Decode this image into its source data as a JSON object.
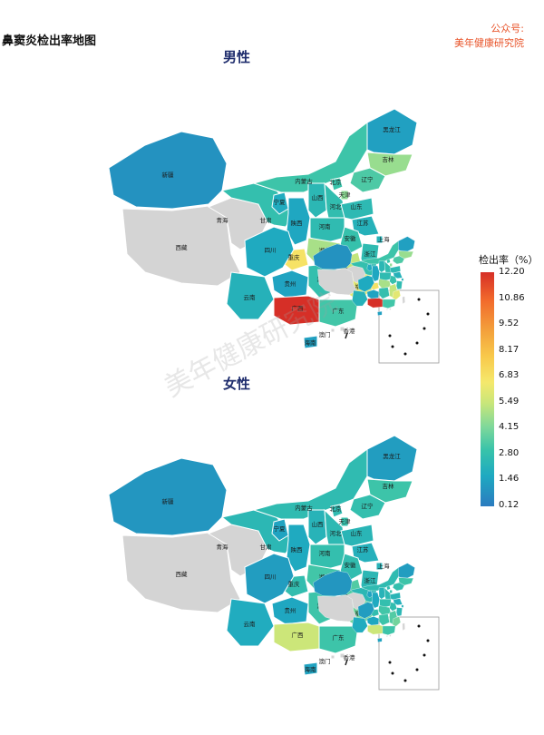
{
  "title": "鼻窦炎检出率地图",
  "brand": {
    "line1": "公众号:",
    "line2": "美年健康研究院"
  },
  "watermark": "美年健康研究院",
  "legend": {
    "title": "检出率（%）",
    "ticks": [
      "12.20",
      "10.86",
      "9.52",
      "8.17",
      "6.83",
      "5.49",
      "4.15",
      "2.80",
      "1.46",
      "0.12"
    ],
    "min": 0.12,
    "max": 12.2
  },
  "colors": {
    "nodata": "#d4d4d4",
    "border": "#ffffff",
    "low": "#2b7bbf",
    "high": "#d62f27"
  },
  "maps": [
    {
      "subtitle": "男性",
      "provinces": [
        {
          "name": "新疆",
          "value": 0.8
        },
        {
          "name": "西藏",
          "value": null
        },
        {
          "name": "青海",
          "value": null
        },
        {
          "name": "甘肃",
          "value": 2.6
        },
        {
          "name": "内蒙古",
          "value": 2.9
        },
        {
          "name": "黑龙江",
          "value": 1.2
        },
        {
          "name": "吉林",
          "value": 4.6
        },
        {
          "name": "辽宁",
          "value": 3.2
        },
        {
          "name": "宁夏",
          "value": 1.6
        },
        {
          "name": "陕西",
          "value": 1.4
        },
        {
          "name": "山西",
          "value": 2.2
        },
        {
          "name": "北京",
          "value": 2.8
        },
        {
          "name": "天津",
          "value": 4.4
        },
        {
          "name": "河北",
          "value": 2.5
        },
        {
          "name": "山东",
          "value": 2.3
        },
        {
          "name": "河南",
          "value": 2.4
        },
        {
          "name": "江苏",
          "value": 1.9
        },
        {
          "name": "安徽",
          "value": 2.7
        },
        {
          "name": "上海",
          "value": 2.0
        },
        {
          "name": "湖北",
          "value": 4.9
        },
        {
          "name": "重庆",
          "value": 7.1
        },
        {
          "name": "四川",
          "value": 1.5
        },
        {
          "name": "湖南",
          "value": 2.6
        },
        {
          "name": "江西",
          "value": 5.4
        },
        {
          "name": "浙江",
          "value": 2.4
        },
        {
          "name": "福建",
          "value": 6.3
        },
        {
          "name": "贵州",
          "value": 1.3
        },
        {
          "name": "云南",
          "value": 1.9
        },
        {
          "name": "广西",
          "value": 12.2
        },
        {
          "name": "广东",
          "value": 3.0
        },
        {
          "name": "海南",
          "value": 1.2
        },
        {
          "name": "台湾",
          "value": null
        },
        {
          "name": "香港",
          "value": null
        },
        {
          "name": "澳门",
          "value": null
        }
      ]
    },
    {
      "subtitle": "女性",
      "provinces": [
        {
          "name": "新疆",
          "value": 0.9
        },
        {
          "name": "西藏",
          "value": null
        },
        {
          "name": "青海",
          "value": null
        },
        {
          "name": "甘肃",
          "value": 2.2
        },
        {
          "name": "内蒙古",
          "value": 2.4
        },
        {
          "name": "黑龙江",
          "value": 1.1
        },
        {
          "name": "吉林",
          "value": 2.9
        },
        {
          "name": "辽宁",
          "value": 2.6
        },
        {
          "name": "宁夏",
          "value": 1.3
        },
        {
          "name": "陕西",
          "value": 1.5
        },
        {
          "name": "山西",
          "value": 2.0
        },
        {
          "name": "北京",
          "value": 2.4
        },
        {
          "name": "天津",
          "value": 2.7
        },
        {
          "name": "河北",
          "value": 2.3
        },
        {
          "name": "山东",
          "value": 2.1
        },
        {
          "name": "河南",
          "value": 2.6
        },
        {
          "name": "江苏",
          "value": 1.8
        },
        {
          "name": "安徽",
          "value": 2.5
        },
        {
          "name": "上海",
          "value": 2.0
        },
        {
          "name": "湖北",
          "value": 3.0
        },
        {
          "name": "重庆",
          "value": 2.5
        },
        {
          "name": "四川",
          "value": 1.1
        },
        {
          "name": "湖南",
          "value": 2.9
        },
        {
          "name": "江西",
          "value": 3.3
        },
        {
          "name": "浙江",
          "value": 2.2
        },
        {
          "name": "福建",
          "value": 3.9
        },
        {
          "name": "贵州",
          "value": 1.4
        },
        {
          "name": "云南",
          "value": 1.6
        },
        {
          "name": "广西",
          "value": 5.6
        },
        {
          "name": "广东",
          "value": 2.9
        },
        {
          "name": "海南",
          "value": 1.3
        },
        {
          "name": "台湾",
          "value": null
        },
        {
          "name": "香港",
          "value": null
        },
        {
          "name": "澳门",
          "value": null
        }
      ]
    }
  ]
}
